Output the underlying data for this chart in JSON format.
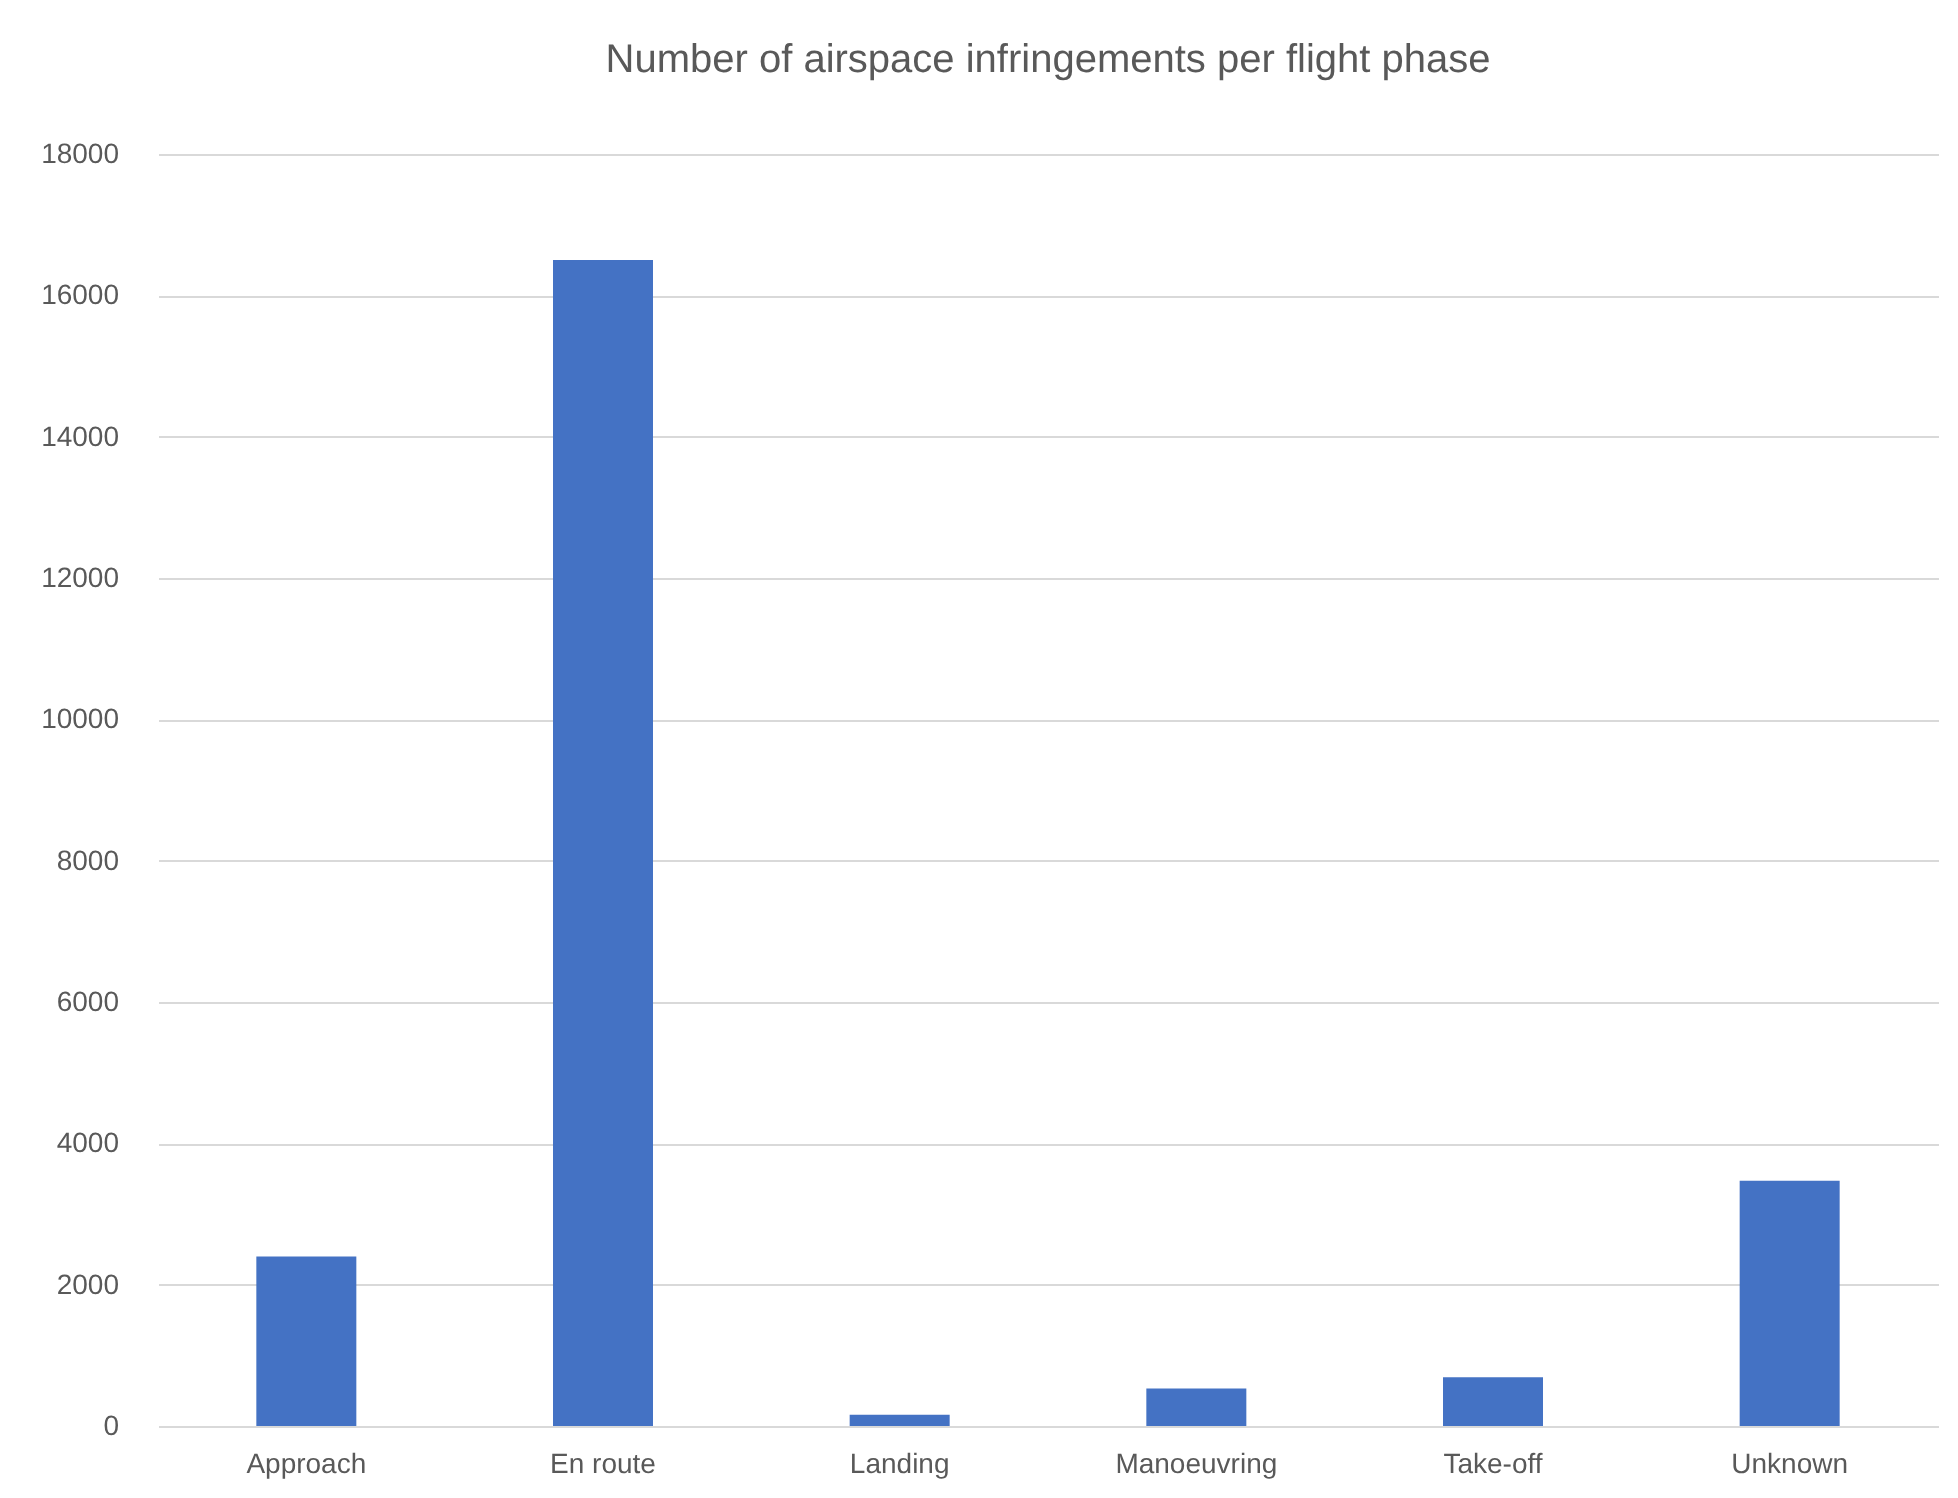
{
  "chart_data": {
    "type": "bar",
    "title": "Number of airspace infringements per flight phase",
    "categories": [
      "Approach",
      "En route",
      "Landing",
      "Manoeuvring",
      "Take-off",
      "Unknown"
    ],
    "values": [
      2400,
      16500,
      160,
      530,
      690,
      3470
    ],
    "color": "#4472c4",
    "ylim": [
      0,
      18000
    ],
    "yticks": [
      0,
      2000,
      4000,
      6000,
      8000,
      10000,
      12000,
      14000,
      16000,
      18000
    ],
    "grid": "y"
  }
}
